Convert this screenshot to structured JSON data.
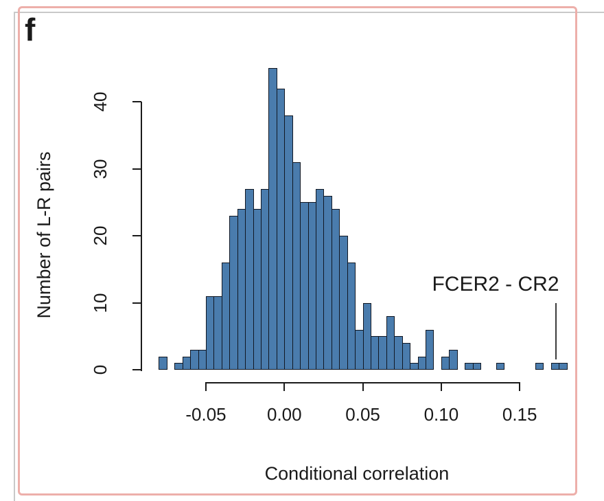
{
  "figure": {
    "panel_label": "f"
  },
  "chart_data": {
    "type": "histogram",
    "title": "",
    "xlabel": "Conditional correlation",
    "ylabel": "Number of L-R pairs",
    "xlim": [
      -0.08,
      0.18
    ],
    "ylim": [
      0,
      45
    ],
    "grid": false,
    "bin_start": -0.08,
    "bin_width": 0.005,
    "counts": [
      2,
      0,
      1,
      2,
      3,
      3,
      11,
      11,
      16,
      23,
      24,
      27,
      24,
      27,
      45,
      42,
      38,
      31,
      25,
      25,
      27,
      26,
      24,
      20,
      16,
      6,
      10,
      5,
      5,
      8,
      5,
      4,
      1,
      2,
      6,
      0,
      2,
      3,
      0,
      1,
      1,
      0,
      0,
      1,
      0,
      0,
      0,
      0,
      1,
      0,
      1,
      1
    ],
    "x_tick_values": [
      -0.05,
      0.0,
      0.05,
      0.1,
      0.15
    ],
    "x_tick_labels": [
      "-0.05",
      "0.00",
      "0.05",
      "0.10",
      "0.15"
    ],
    "y_tick_values": [
      0,
      10,
      20,
      30,
      40
    ],
    "y_tick_labels": [
      "0",
      "10",
      "20",
      "30",
      "40"
    ],
    "bar_fill": "#4a7cad",
    "bar_stroke": "#111722",
    "annotation": {
      "label": "FCER2 - CR2",
      "x": 0.1725,
      "line_count_from": 1.5,
      "line_count_to": 10.0
    }
  }
}
